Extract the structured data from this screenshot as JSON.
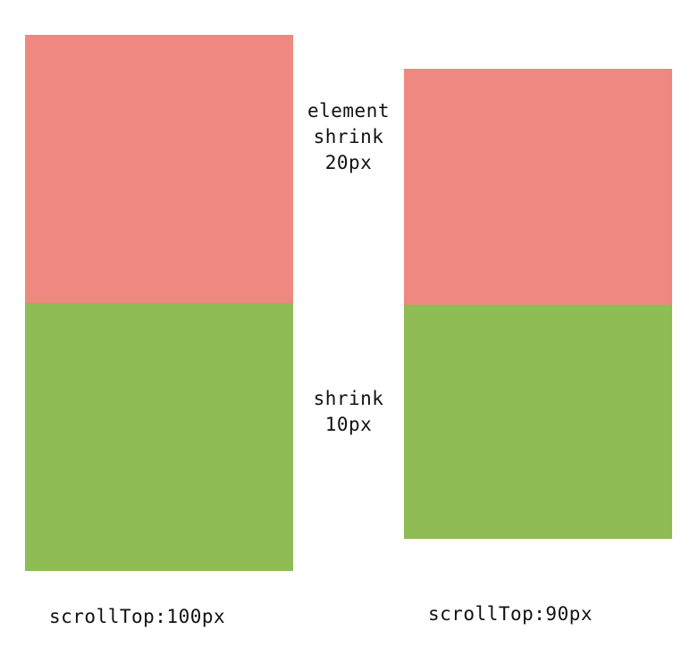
{
  "colors": {
    "top_block": "#ee8880",
    "bottom_block": "#8fbc55",
    "background": "#ffffff",
    "text": "#111111"
  },
  "annotations": {
    "element_shrink": [
      "element",
      "shrink",
      "20px"
    ],
    "shrink": [
      "shrink",
      "10px"
    ]
  },
  "captions": {
    "left": "scrollTop:100px",
    "right": "scrollTop:90px"
  }
}
